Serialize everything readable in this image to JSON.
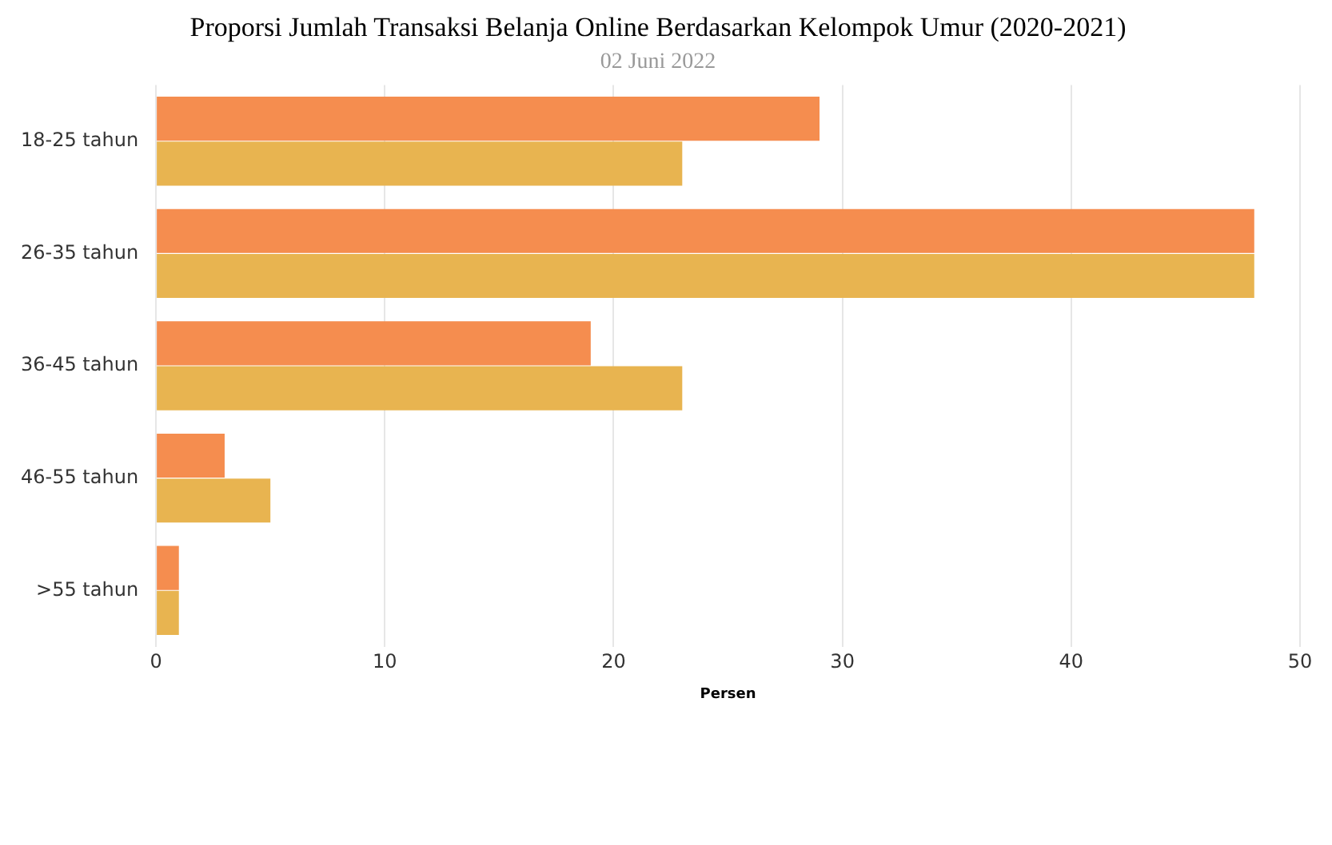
{
  "chart_data": {
    "type": "bar",
    "orientation": "horizontal",
    "title": "Proporsi Jumlah Transaksi Belanja Online Berdasarkan Kelompok Umur (2020-2021)",
    "subtitle": "02 Juni 2022",
    "xlabel": "Persen",
    "categories": [
      "18-25 tahun",
      "26-35 tahun",
      "36-45 tahun",
      "46-55 tahun",
      ">55 tahun"
    ],
    "series": [
      {
        "color": "#f58d4f",
        "values": [
          29,
          48,
          19,
          3,
          1
        ]
      },
      {
        "color": "#e8b450",
        "values": [
          23,
          48,
          23,
          5,
          1
        ]
      }
    ],
    "xlim": [
      0,
      50
    ],
    "xticks": [
      0,
      10,
      20,
      30,
      40,
      50
    ],
    "grid": "x",
    "legend": false
  }
}
